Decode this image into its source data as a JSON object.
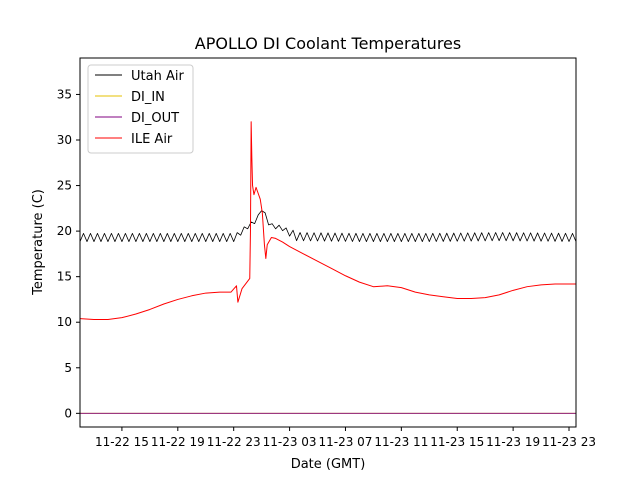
{
  "chart_data": {
    "type": "line",
    "title": "APOLLO DI Coolant Temperatures",
    "xlabel": "Date (GMT)",
    "ylabel": "Temperature (C)",
    "x_unit": "hours since 11-22 12:00 GMT",
    "xlim": [
      0,
      35.5
    ],
    "ylim": [
      -1.5,
      39
    ],
    "grid": false,
    "legend_position": "top-left",
    "x_ticks": [
      {
        "value": 3,
        "label": "11-22 15"
      },
      {
        "value": 7,
        "label": "11-22 19"
      },
      {
        "value": 11,
        "label": "11-22 23"
      },
      {
        "value": 15,
        "label": "11-23 03"
      },
      {
        "value": 19,
        "label": "11-23 07"
      },
      {
        "value": 23,
        "label": "11-23 11"
      },
      {
        "value": 27,
        "label": "11-23 15"
      },
      {
        "value": 31,
        "label": "11-23 19"
      },
      {
        "value": 35,
        "label": "11-23 23"
      }
    ],
    "y_ticks": [
      {
        "value": 0,
        "label": "0"
      },
      {
        "value": 5,
        "label": "5"
      },
      {
        "value": 10,
        "label": "10"
      },
      {
        "value": 15,
        "label": "15"
      },
      {
        "value": 20,
        "label": "20"
      },
      {
        "value": 25,
        "label": "25"
      },
      {
        "value": 30,
        "label": "30"
      },
      {
        "value": 35,
        "label": "35"
      }
    ],
    "series": [
      {
        "name": "Utah Air",
        "color": "#000000",
        "x": [
          0,
          11.2,
          11.8,
          12.4,
          12.8,
          13.0,
          13.3,
          13.6,
          14.0,
          14.5,
          15.0,
          15.5,
          20,
          25,
          30,
          35.5
        ],
        "y": [
          19.3,
          19.3,
          20.3,
          20.9,
          21.6,
          22.5,
          21.6,
          20.6,
          20.5,
          20.3,
          19.9,
          19.4,
          19.3,
          19.3,
          19.4,
          19.3
        ],
        "oscillation_amplitude": 0.45,
        "oscillation_period_hours": 0.5
      },
      {
        "name": "DI_IN",
        "color": "#e6c200",
        "x": [
          0,
          35.5
        ],
        "y": [
          0,
          0
        ]
      },
      {
        "name": "DI_OUT",
        "color": "#800080",
        "x": [
          0,
          35.5
        ],
        "y": [
          0,
          0
        ]
      },
      {
        "name": "ILE Air",
        "color": "#ff0000",
        "x": [
          0,
          1,
          2,
          3,
          4,
          5,
          6,
          7,
          8,
          9,
          10,
          10.8,
          11.2,
          11.3,
          11.6,
          11.9,
          12.15,
          12.2,
          12.25,
          12.3,
          12.35,
          12.45,
          12.6,
          12.9,
          13.05,
          13.2,
          13.3,
          13.4,
          13.7,
          14.0,
          14.5,
          15.0,
          16,
          17,
          18,
          19,
          20,
          21,
          22,
          23,
          24,
          25,
          26,
          27,
          28,
          29,
          30,
          31,
          32,
          33,
          34,
          35.5
        ],
        "y": [
          10.4,
          10.3,
          10.3,
          10.5,
          10.9,
          11.4,
          12.0,
          12.5,
          12.9,
          13.2,
          13.3,
          13.3,
          14.0,
          12.2,
          13.7,
          14.3,
          14.8,
          20.0,
          32.0,
          28.0,
          25.0,
          24.0,
          24.8,
          23.5,
          22.0,
          18.5,
          17.0,
          18.5,
          19.3,
          19.2,
          18.8,
          18.3,
          17.5,
          16.7,
          15.9,
          15.1,
          14.4,
          13.9,
          14.0,
          13.8,
          13.3,
          13.0,
          12.8,
          12.6,
          12.6,
          12.7,
          13.0,
          13.5,
          13.9,
          14.1,
          14.2,
          14.2
        ]
      }
    ]
  }
}
